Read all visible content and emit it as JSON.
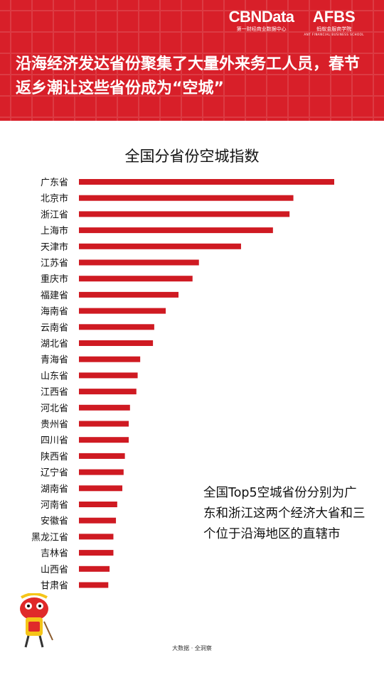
{
  "header": {
    "brand_cbn": "CBNData",
    "brand_cbn_sub": "第一财经商业数据中心",
    "brand_afbs": "AFBS",
    "brand_afbs_sub": "蚂蚁金服商学院",
    "brand_afbs_sub2": "ANT FINANCIAL BUSINESS SCHOOL",
    "headline": "沿海经济发达省份聚集了大量外来务工人员，春节返乡潮让这些省份成为“空城”"
  },
  "note": "全国Top5空城省份分别为广东和浙江这两个经济大省和三个位于沿海地区的直辖市",
  "source": "大数据 · 全洞察",
  "colors": {
    "bar": "#cf1a22",
    "header": "#d81f29"
  },
  "chart_data": {
    "type": "bar",
    "orientation": "horizontal",
    "title": "全国分省份空城指数",
    "categories": [
      "广东省",
      "北京市",
      "浙江省",
      "上海市",
      "天津市",
      "江苏省",
      "重庆市",
      "福建省",
      "海南省",
      "云南省",
      "湖北省",
      "青海省",
      "山东省",
      "江西省",
      "河北省",
      "贵州省",
      "四川省",
      "陕西省",
      "辽宁省",
      "湖南省",
      "河南省",
      "安徽省",
      "黑龙江省",
      "吉林省",
      "山西省",
      "甘肃省"
    ],
    "values": [
      100,
      84,
      82.5,
      76,
      63.5,
      47,
      44.5,
      39,
      34,
      29.5,
      29,
      24,
      23,
      22.5,
      20,
      19.5,
      19.5,
      18,
      17.5,
      17,
      15,
      14.5,
      13.5,
      13.5,
      12,
      11.5
    ],
    "xlim": [
      0,
      100
    ],
    "xlabel": "",
    "ylabel": "",
    "grid": false,
    "legend": "none"
  }
}
